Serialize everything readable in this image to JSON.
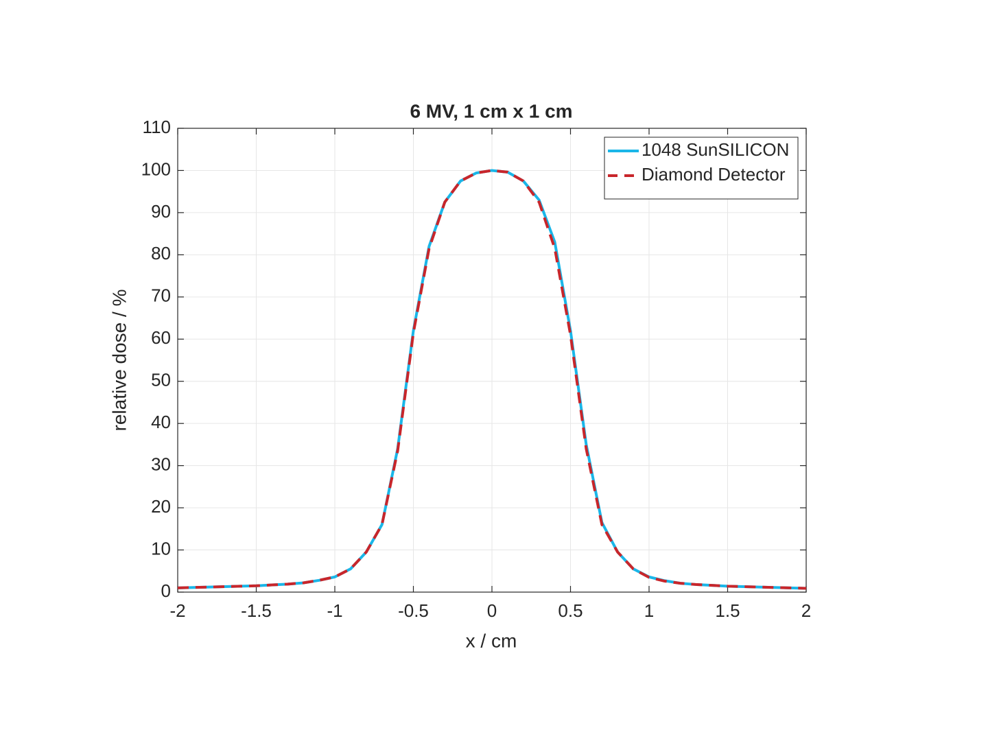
{
  "chart_data": {
    "type": "line",
    "title": "6 MV, 1 cm x 1 cm",
    "x_label": "x / cm",
    "y_label": "relative dose / %",
    "x": [
      -2,
      -1.9,
      -1.8,
      -1.7,
      -1.6,
      -1.5,
      -1.4,
      -1.3,
      -1.2,
      -1.1,
      -1,
      -0.9,
      -0.8,
      -0.7,
      -0.6,
      -0.5,
      -0.4,
      -0.3,
      -0.2,
      -0.1,
      0,
      0.1,
      0.2,
      0.3,
      0.4,
      0.5,
      0.6,
      0.7,
      0.8,
      0.9,
      1,
      1.1,
      1.2,
      1.3,
      1.4,
      1.5,
      1.6,
      1.7,
      1.8,
      1.9,
      2
    ],
    "series": [
      {
        "name": "1048 SunSILICON",
        "color": "#1ab6e8",
        "dash": false,
        "values": [
          1,
          1.1,
          1.2,
          1.3,
          1.4,
          1.5,
          1.7,
          1.9,
          2.2,
          2.8,
          3.6,
          5.5,
          9.5,
          16,
          34,
          62,
          82,
          92.5,
          97.5,
          99.4,
          100,
          99.6,
          97.5,
          93,
          83,
          62,
          35,
          16.5,
          9.5,
          5.5,
          3.6,
          2.7,
          2.1,
          1.8,
          1.6,
          1.4,
          1.3,
          1.2,
          1.1,
          1,
          0.9
        ]
      },
      {
        "name": "Diamond Detector",
        "color": "#c8262b",
        "dash": true,
        "values": [
          1,
          1.1,
          1.2,
          1.3,
          1.4,
          1.5,
          1.7,
          1.9,
          2.2,
          2.8,
          3.6,
          5.5,
          9.5,
          16,
          33.5,
          61.5,
          81.5,
          92.5,
          97.5,
          99.4,
          100,
          99.6,
          97.5,
          92.5,
          81.5,
          61,
          34,
          16,
          9.5,
          5.5,
          3.5,
          2.6,
          2.1,
          1.8,
          1.6,
          1.4,
          1.3,
          1.2,
          1.1,
          1,
          0.9
        ]
      }
    ],
    "xlim": [
      -2,
      2
    ],
    "xticks": [
      -2,
      -1.5,
      -1,
      -0.5,
      0,
      0.5,
      1,
      1.5,
      2
    ],
    "ylim": [
      0,
      110
    ],
    "yticks": [
      0,
      10,
      20,
      30,
      40,
      50,
      60,
      70,
      80,
      90,
      100,
      110
    ],
    "grid": true,
    "legend": "top-right"
  }
}
